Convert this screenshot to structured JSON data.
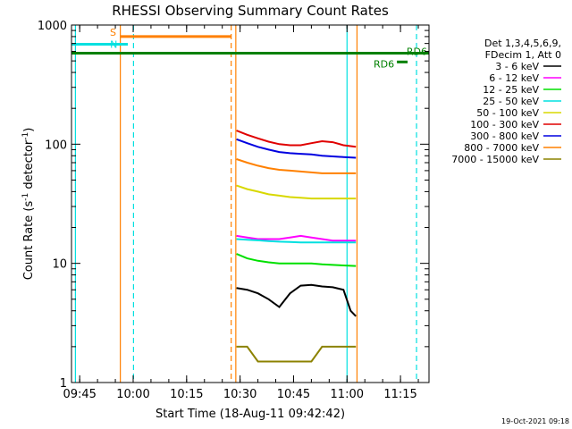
{
  "chart_data": {
    "type": "line",
    "title": "RHESSI Observing Summary Count Rates",
    "xlabel": "Start Time (18-Aug-11 09:42:42)",
    "ylabel_prefix": "Count Rate (s",
    "ylabel_sup1": "-1",
    "ylabel_mid": " detector",
    "ylabel_sup2": "-1",
    "ylabel_suffix": ")",
    "y_scale": "log",
    "ylim": [
      1,
      1000
    ],
    "xlim_minutes": [
      42.7,
      143.0
    ],
    "x_ticks": [
      {
        "label": "09:45",
        "minute": 45
      },
      {
        "label": "10:00",
        "minute": 60
      },
      {
        "label": "10:15",
        "minute": 75
      },
      {
        "label": "10:30",
        "minute": 90
      },
      {
        "label": "10:45",
        "minute": 105
      },
      {
        "label": "11:00",
        "minute": 120
      },
      {
        "label": "11:15",
        "minute": 135
      }
    ],
    "y_ticks": [
      {
        "label": "1",
        "value": 1
      },
      {
        "label": "10",
        "value": 10
      },
      {
        "label": "100",
        "value": 100
      },
      {
        "label": "1000",
        "value": 1000
      }
    ],
    "legend": {
      "placement": "right",
      "header1": "Det 1,3,4,5,6,9,",
      "header2": "FDecim 1, Att 0"
    },
    "series": [
      {
        "name": "3 - 6 keV",
        "color": "#000000",
        "x": [
          89,
          92,
          95,
          98,
          101,
          104,
          107,
          110,
          113,
          116,
          119,
          121,
          122.5
        ],
        "y": [
          6.2,
          6.0,
          5.6,
          5.0,
          4.3,
          5.6,
          6.5,
          6.6,
          6.4,
          6.3,
          6.0,
          4.0,
          3.6
        ]
      },
      {
        "name": "6 - 12 keV",
        "color": "#ff00ff",
        "x": [
          89,
          92,
          95,
          98,
          101,
          104,
          107,
          110,
          113,
          116,
          119,
          122.5
        ],
        "y": [
          17,
          16.5,
          16,
          16,
          16,
          16.5,
          17,
          16.5,
          16,
          15.5,
          15.5,
          15.5
        ]
      },
      {
        "name": "12 - 25 keV",
        "color": "#00e000",
        "x": [
          89,
          92,
          95,
          98,
          101,
          104,
          107,
          110,
          113,
          116,
          119,
          122.5
        ],
        "y": [
          12,
          11,
          10.5,
          10.2,
          10,
          10,
          10,
          10,
          9.8,
          9.7,
          9.6,
          9.5
        ]
      },
      {
        "name": "25 - 50 keV",
        "color": "#00e0e0",
        "x": [
          89,
          92,
          95,
          98,
          101,
          104,
          107,
          110,
          113,
          116,
          119,
          122.5
        ],
        "y": [
          16,
          15.8,
          15.6,
          15.4,
          15.2,
          15.1,
          15.0,
          15.0,
          15.0,
          15.0,
          15.0,
          15.0
        ]
      },
      {
        "name": "50 - 100 keV",
        "color": "#d8d800",
        "x": [
          89,
          92,
          95,
          98,
          101,
          104,
          107,
          110,
          113,
          116,
          119,
          122.5
        ],
        "y": [
          45,
          42,
          40,
          38,
          37,
          36,
          35.5,
          35,
          35,
          35,
          35,
          35
        ]
      },
      {
        "name": "100 - 300 keV",
        "color": "#e00000",
        "x": [
          89,
          92,
          95,
          98,
          101,
          104,
          107,
          110,
          113,
          116,
          119,
          122.5
        ],
        "y": [
          130,
          120,
          112,
          105,
          100,
          98,
          98,
          102,
          106,
          104,
          98,
          95
        ]
      },
      {
        "name": "300 - 800 keV",
        "color": "#0000e0",
        "x": [
          89,
          92,
          95,
          98,
          101,
          104,
          107,
          110,
          113,
          116,
          119,
          122.5
        ],
        "y": [
          110,
          102,
          95,
          90,
          86,
          84,
          83,
          82,
          80,
          79,
          78,
          77
        ]
      },
      {
        "name": "800 - 7000 keV",
        "color": "#ff8000",
        "x": [
          89,
          92,
          95,
          98,
          101,
          104,
          107,
          110,
          113,
          116,
          119,
          122.5
        ],
        "y": [
          75,
          70,
          66,
          63,
          61,
          60,
          59,
          58,
          57,
          57,
          57,
          57
        ]
      },
      {
        "name": "7000 - 15000 keV",
        "color": "#8c8200",
        "x": [
          89,
          92,
          95,
          98,
          101,
          104,
          107,
          110,
          113,
          116,
          119,
          122.5
        ],
        "y": [
          2.0,
          2.0,
          1.5,
          1.5,
          1.5,
          1.5,
          1.5,
          1.5,
          2.0,
          2.0,
          2.0,
          2.0
        ]
      }
    ],
    "flags": [
      {
        "label": "S",
        "color": "#ff8000",
        "x_start": 56.5,
        "x_end": 87.5,
        "y": 800
      },
      {
        "label": "N",
        "color": "#00e0e0",
        "x_start": 42.7,
        "x_end": 58.5,
        "y": 690
      },
      {
        "label": "RD6",
        "color": "#008000",
        "x_start": 42.7,
        "x_end": 143,
        "y": 580
      },
      {
        "label": "RD6",
        "color": "#008000",
        "x_start": 134,
        "x_end": 137,
        "y": 490
      }
    ],
    "vertical_markers": [
      {
        "minute": 43.8,
        "color": "#00e0e0",
        "dashed": false
      },
      {
        "minute": 56.4,
        "color": "#ff8000",
        "dashed": false
      },
      {
        "minute": 60.1,
        "color": "#00e0e0",
        "dashed": true
      },
      {
        "minute": 87.5,
        "color": "#ff8000",
        "dashed": true
      },
      {
        "minute": 88.8,
        "color": "#ff8000",
        "dashed": false
      },
      {
        "minute": 120.0,
        "color": "#00e0e0",
        "dashed": false
      },
      {
        "minute": 122.8,
        "color": "#ff8000",
        "dashed": false
      },
      {
        "minute": 139.5,
        "color": "#00e0e0",
        "dashed": true
      }
    ],
    "date_stamp": "19-Oct-2021 09:18"
  }
}
